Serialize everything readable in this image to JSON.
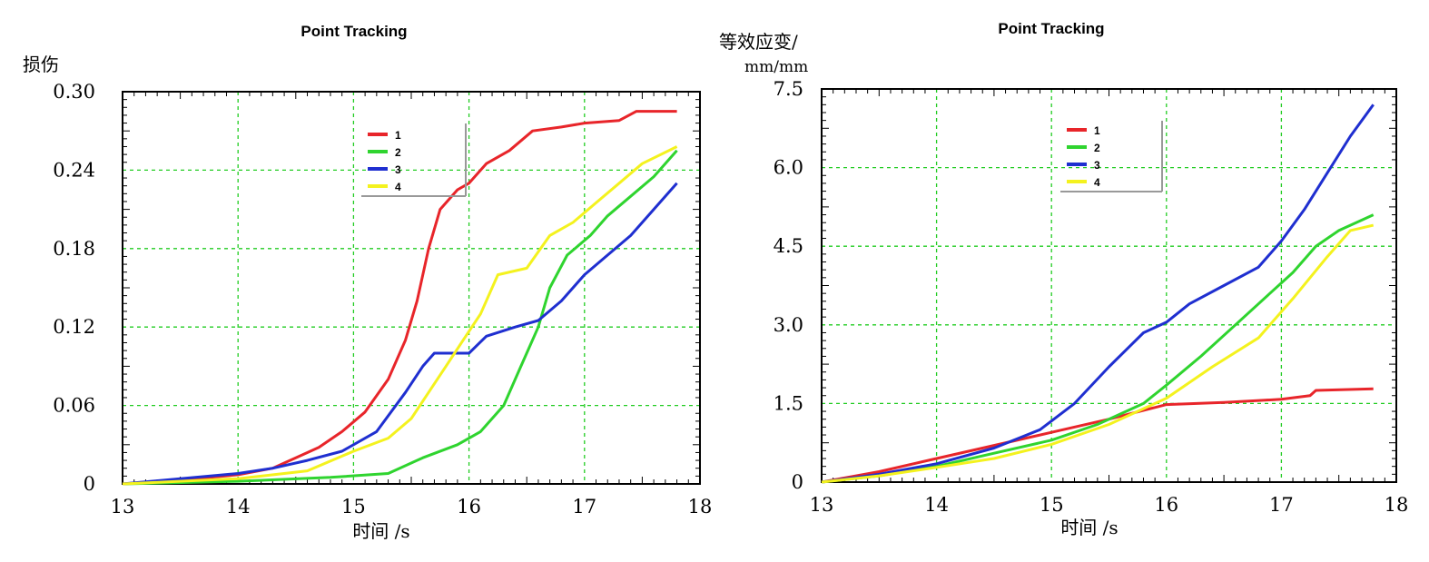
{
  "colors": {
    "1": "#e8252a",
    "2": "#2fd42f",
    "3": "#1f2fd0",
    "4": "#f4f21e",
    "grid": "#22cc22",
    "frame": "#000000"
  },
  "chart_data": [
    {
      "type": "line",
      "title": "Point Tracking",
      "ylabel": "损伤",
      "ylabel_unit": "",
      "xlabel": "时间 /s",
      "xlim": [
        13,
        18
      ],
      "ylim": [
        0,
        0.3
      ],
      "xticks": [
        "13",
        "14",
        "15",
        "16",
        "17",
        "18"
      ],
      "yticks": [
        "0",
        "0.06",
        "0.12",
        "0.18",
        "0.24",
        "0.30"
      ],
      "grid": true,
      "legend_position": "top-center",
      "series": [
        {
          "name": "1",
          "color": "#e8252a",
          "points": [
            [
              13,
              0
            ],
            [
              13.5,
              0.003
            ],
            [
              14,
              0.007
            ],
            [
              14.3,
              0.012
            ],
            [
              14.5,
              0.02
            ],
            [
              14.7,
              0.028
            ],
            [
              14.9,
              0.04
            ],
            [
              15.1,
              0.055
            ],
            [
              15.3,
              0.08
            ],
            [
              15.45,
              0.11
            ],
            [
              15.55,
              0.14
            ],
            [
              15.65,
              0.18
            ],
            [
              15.75,
              0.21
            ],
            [
              15.9,
              0.225
            ],
            [
              16,
              0.23
            ],
            [
              16.15,
              0.245
            ],
            [
              16.35,
              0.255
            ],
            [
              16.55,
              0.27
            ],
            [
              16.8,
              0.273
            ],
            [
              17.0,
              0.276
            ],
            [
              17.3,
              0.278
            ],
            [
              17.45,
              0.285
            ],
            [
              17.8,
              0.285
            ]
          ]
        },
        {
          "name": "2",
          "color": "#2fd42f",
          "points": [
            [
              13,
              0
            ],
            [
              14,
              0.002
            ],
            [
              14.8,
              0.005
            ],
            [
              15.3,
              0.008
            ],
            [
              15.6,
              0.02
            ],
            [
              15.9,
              0.03
            ],
            [
              16.1,
              0.04
            ],
            [
              16.3,
              0.06
            ],
            [
              16.45,
              0.09
            ],
            [
              16.6,
              0.12
            ],
            [
              16.7,
              0.15
            ],
            [
              16.85,
              0.175
            ],
            [
              17.05,
              0.19
            ],
            [
              17.2,
              0.205
            ],
            [
              17.4,
              0.22
            ],
            [
              17.6,
              0.235
            ],
            [
              17.8,
              0.255
            ]
          ]
        },
        {
          "name": "3",
          "color": "#1f2fd0",
          "points": [
            [
              13,
              0
            ],
            [
              13.5,
              0.004
            ],
            [
              14,
              0.008
            ],
            [
              14.3,
              0.012
            ],
            [
              14.6,
              0.018
            ],
            [
              14.9,
              0.025
            ],
            [
              15.2,
              0.04
            ],
            [
              15.45,
              0.07
            ],
            [
              15.6,
              0.09
            ],
            [
              15.7,
              0.1
            ],
            [
              16.0,
              0.1
            ],
            [
              16.15,
              0.113
            ],
            [
              16.4,
              0.12
            ],
            [
              16.6,
              0.125
            ],
            [
              16.8,
              0.14
            ],
            [
              17.0,
              0.16
            ],
            [
              17.2,
              0.175
            ],
            [
              17.4,
              0.19
            ],
            [
              17.6,
              0.21
            ],
            [
              17.8,
              0.23
            ]
          ]
        },
        {
          "name": "4",
          "color": "#f4f21e",
          "points": [
            [
              13,
              0
            ],
            [
              14,
              0.004
            ],
            [
              14.6,
              0.01
            ],
            [
              15,
              0.025
            ],
            [
              15.3,
              0.035
            ],
            [
              15.5,
              0.05
            ],
            [
              15.65,
              0.07
            ],
            [
              15.8,
              0.09
            ],
            [
              15.95,
              0.11
            ],
            [
              16.1,
              0.13
            ],
            [
              16.25,
              0.16
            ],
            [
              16.5,
              0.165
            ],
            [
              16.7,
              0.19
            ],
            [
              16.9,
              0.2
            ],
            [
              17.1,
              0.215
            ],
            [
              17.3,
              0.23
            ],
            [
              17.5,
              0.245
            ],
            [
              17.8,
              0.258
            ]
          ]
        }
      ]
    },
    {
      "type": "line",
      "title": "Point Tracking",
      "ylabel": "等效应变/",
      "ylabel_unit": "mm/mm",
      "xlabel": "时间 /s",
      "xlim": [
        13,
        18
      ],
      "ylim": [
        0,
        7.5
      ],
      "xticks": [
        "13",
        "14",
        "15",
        "16",
        "17",
        "18"
      ],
      "yticks": [
        "0",
        "1.5",
        "3.0",
        "4.5",
        "6.0",
        "7.5"
      ],
      "grid": true,
      "legend_position": "top-center",
      "series": [
        {
          "name": "1",
          "color": "#e8252a",
          "points": [
            [
              13,
              0
            ],
            [
              13.5,
              0.2
            ],
            [
              14,
              0.45
            ],
            [
              14.5,
              0.7
            ],
            [
              15,
              0.95
            ],
            [
              15.5,
              1.2
            ],
            [
              16,
              1.48
            ],
            [
              16.5,
              1.52
            ],
            [
              17,
              1.58
            ],
            [
              17.25,
              1.65
            ],
            [
              17.3,
              1.75
            ],
            [
              17.8,
              1.78
            ]
          ]
        },
        {
          "name": "2",
          "color": "#2fd42f",
          "points": [
            [
              13,
              0
            ],
            [
              13.5,
              0.12
            ],
            [
              14,
              0.3
            ],
            [
              14.5,
              0.55
            ],
            [
              15,
              0.8
            ],
            [
              15.4,
              1.1
            ],
            [
              15.8,
              1.5
            ],
            [
              16,
              1.85
            ],
            [
              16.3,
              2.4
            ],
            [
              16.6,
              3.0
            ],
            [
              16.9,
              3.6
            ],
            [
              17.1,
              4.0
            ],
            [
              17.3,
              4.5
            ],
            [
              17.5,
              4.8
            ],
            [
              17.8,
              5.1
            ]
          ]
        },
        {
          "name": "3",
          "color": "#1f2fd0",
          "points": [
            [
              13,
              0
            ],
            [
              13.5,
              0.15
            ],
            [
              14,
              0.35
            ],
            [
              14.5,
              0.65
            ],
            [
              14.9,
              1.0
            ],
            [
              15.2,
              1.5
            ],
            [
              15.5,
              2.2
            ],
            [
              15.8,
              2.85
            ],
            [
              16.0,
              3.05
            ],
            [
              16.2,
              3.4
            ],
            [
              16.5,
              3.75
            ],
            [
              16.8,
              4.1
            ],
            [
              17.0,
              4.6
            ],
            [
              17.2,
              5.2
            ],
            [
              17.4,
              5.9
            ],
            [
              17.6,
              6.6
            ],
            [
              17.8,
              7.2
            ]
          ]
        },
        {
          "name": "4",
          "color": "#f4f21e",
          "points": [
            [
              13,
              0
            ],
            [
              13.5,
              0.12
            ],
            [
              14,
              0.28
            ],
            [
              14.5,
              0.45
            ],
            [
              15,
              0.72
            ],
            [
              15.5,
              1.1
            ],
            [
              16,
              1.6
            ],
            [
              16.4,
              2.2
            ],
            [
              16.8,
              2.75
            ],
            [
              17.1,
              3.5
            ],
            [
              17.4,
              4.3
            ],
            [
              17.6,
              4.8
            ],
            [
              17.8,
              4.9
            ]
          ]
        }
      ]
    }
  ]
}
